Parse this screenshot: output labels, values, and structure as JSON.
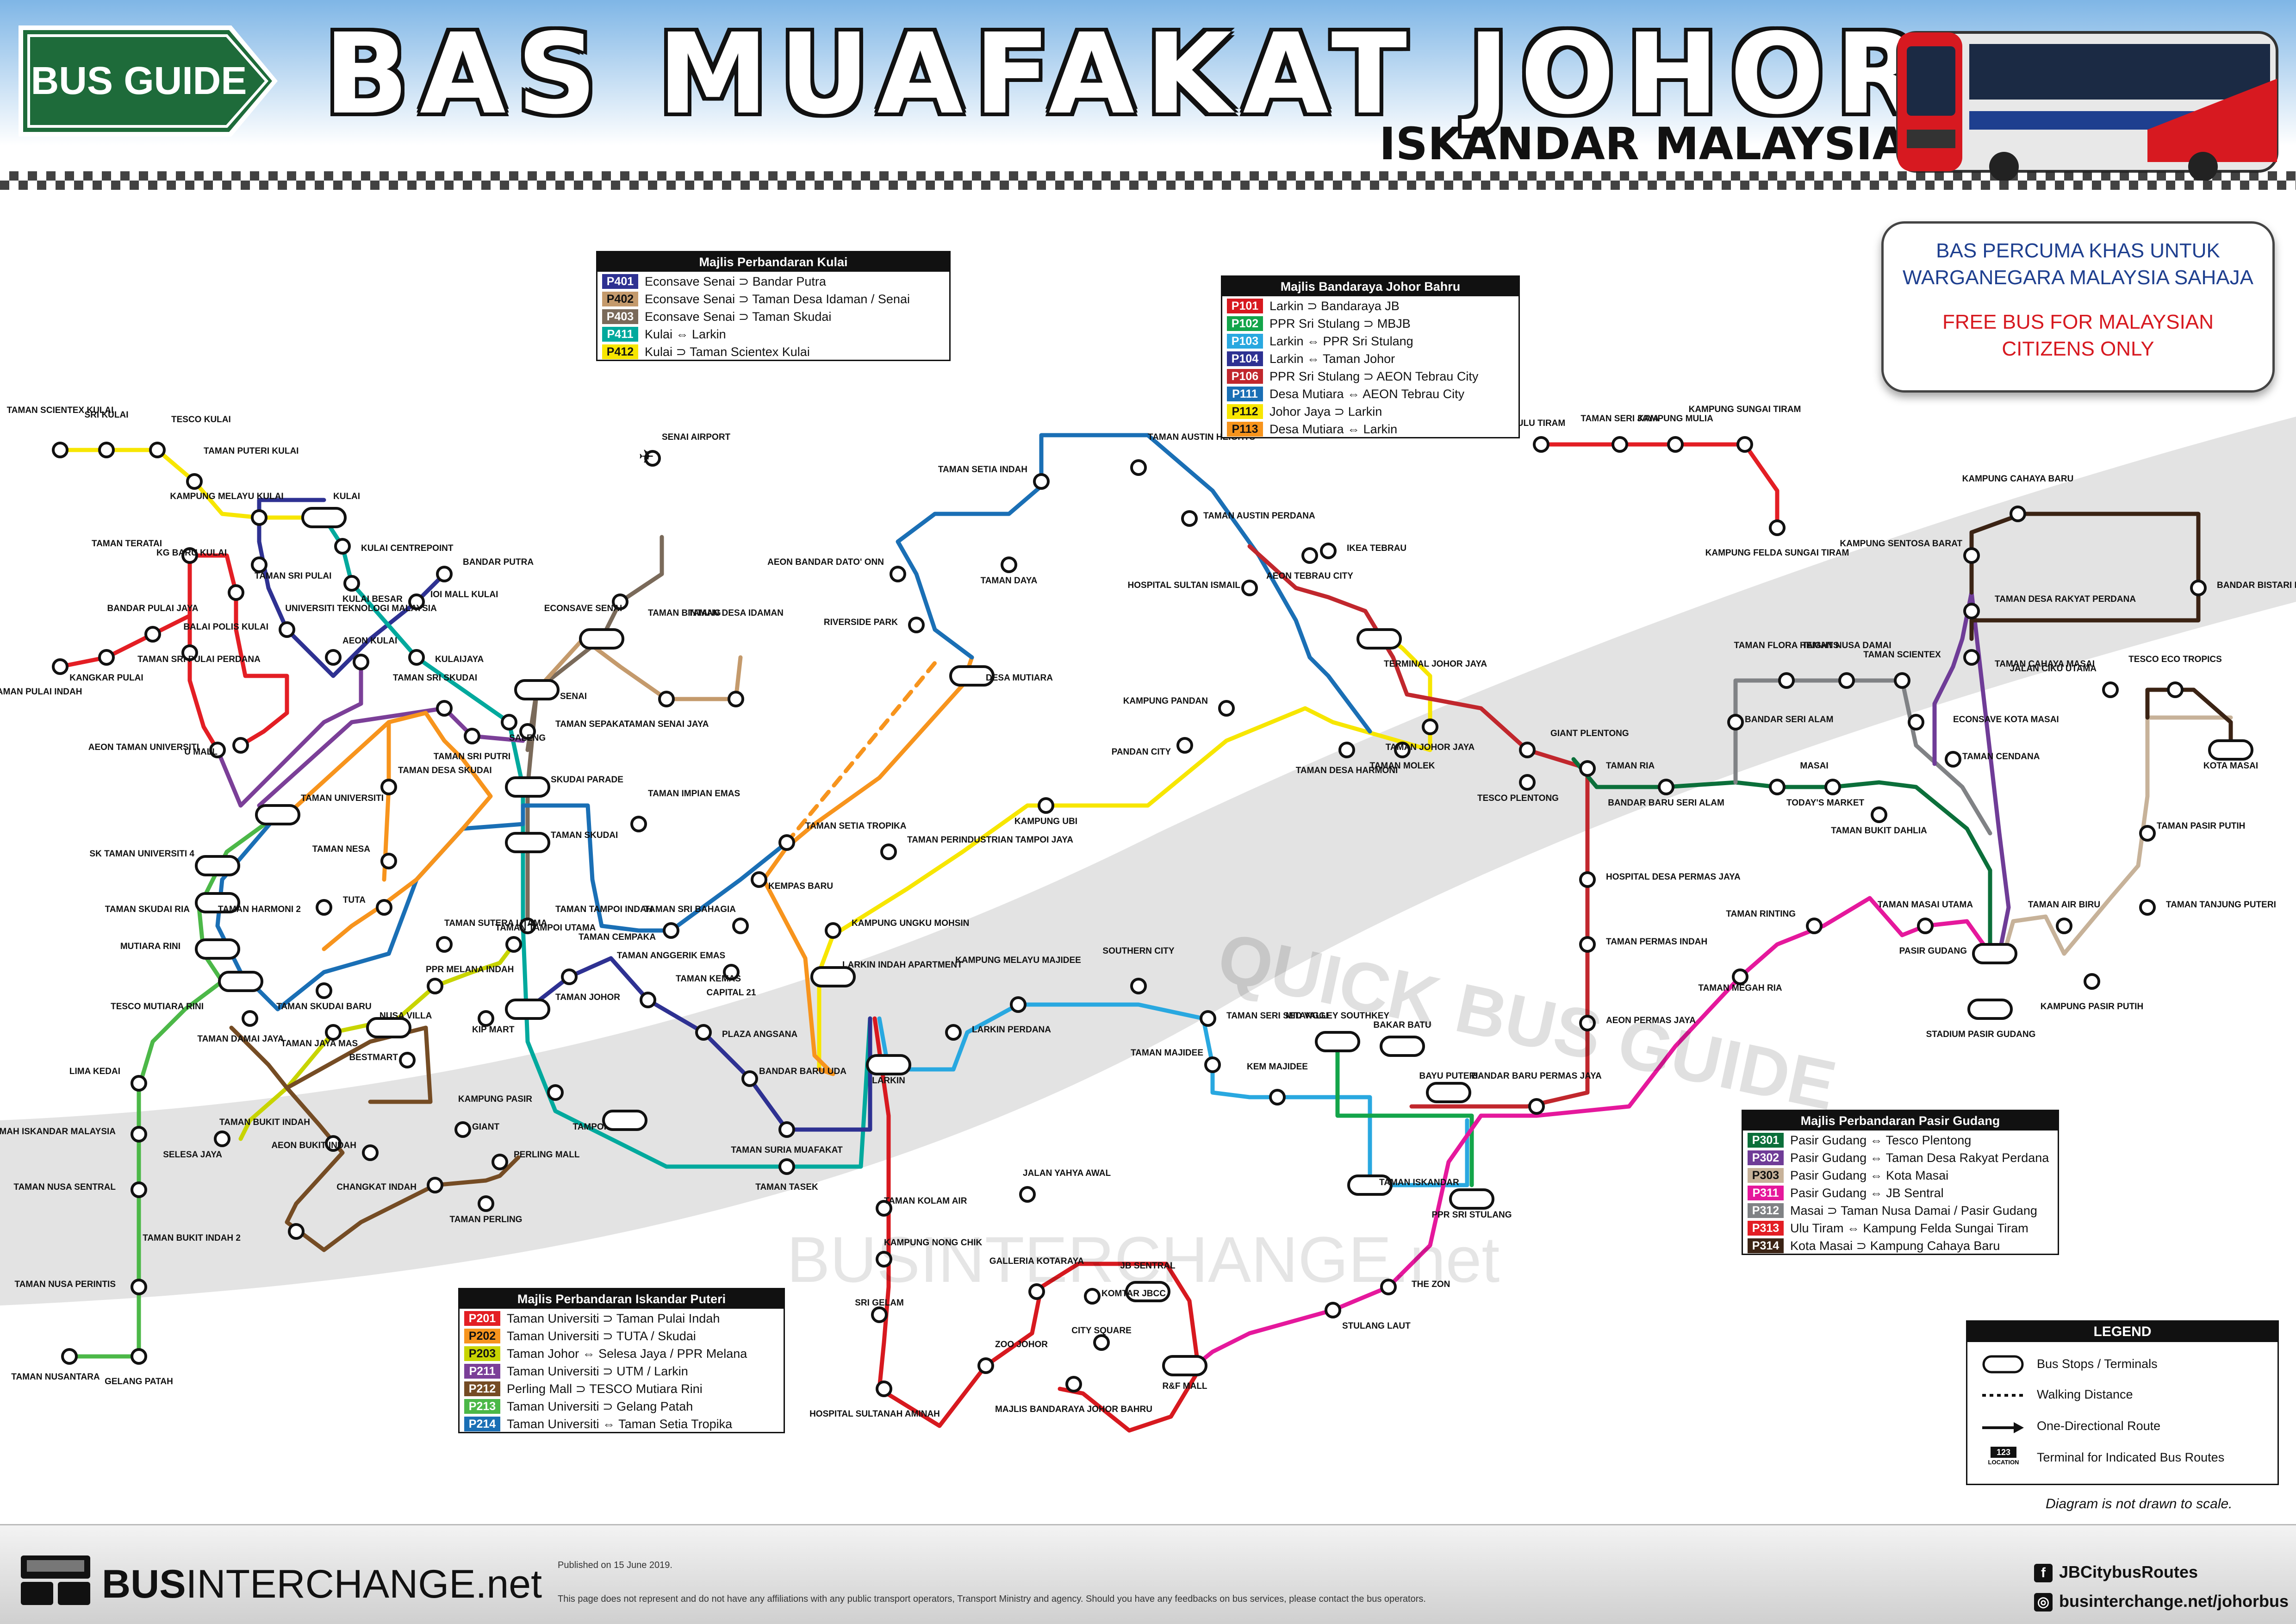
{
  "header": {
    "sign_text": "BUS GUIDE",
    "title": "BAS MUAFAKAT JOHOR",
    "subtitle": "ISKANDAR MALAYSIA"
  },
  "notice": {
    "line1a": "BAS PERCUMA KHAS UNTUK",
    "line1b": "WARGANEGARA MALAYSIA SAHAJA",
    "line2a": "FREE BUS FOR MALAYSIAN",
    "line2b": "CITIZENS ONLY"
  },
  "colors": {
    "P401": "#2e3192",
    "P402": "#c49a6c",
    "P403": "#7a6a5a",
    "P411": "#00a99d",
    "P412": "#f7e600",
    "P101": "#d7191f",
    "P102": "#13a54a",
    "P103": "#29a8e0",
    "P104": "#2e3192",
    "P106": "#c1272d",
    "P111": "#1a6fb5",
    "P112": "#f7e600",
    "P113": "#f7941d",
    "P201": "#e31e24",
    "P202": "#f7941d",
    "P203": "#c8d400",
    "P211": "#7b3f98",
    "P212": "#754c24",
    "P213": "#4cb848",
    "P214": "#1a6fb5",
    "P301": "#0b6f3a",
    "P302": "#6f3c97",
    "P303": "#c7b299",
    "P311": "#e5189c",
    "P312": "#808285",
    "P313": "#e31e24",
    "P314": "#3b2314"
  },
  "boxes": {
    "kulai": {
      "title": "Majlis Perbandaran Kulai",
      "rows": [
        {
          "code": "P401",
          "desc": "Econsave Senai ⊃ Bandar Putra"
        },
        {
          "code": "P402",
          "desc": "Econsave Senai ⊃ Taman Desa Idaman / Senai"
        },
        {
          "code": "P403",
          "desc": "Econsave Senai ⊃ Taman Skudai"
        },
        {
          "code": "P411",
          "desc": "Kulai ⇔ Larkin"
        },
        {
          "code": "P412",
          "desc": "Kulai ⊃ Taman Scientex Kulai"
        }
      ]
    },
    "jb": {
      "title": "Majlis Bandaraya Johor Bahru",
      "rows": [
        {
          "code": "P101",
          "desc": "Larkin ⊃ Bandaraya JB"
        },
        {
          "code": "P102",
          "desc": "PPR Sri Stulang ⊃ MBJB"
        },
        {
          "code": "P103",
          "desc": "Larkin ⇔ PPR Sri Stulang"
        },
        {
          "code": "P104",
          "desc": "Larkin ⇔ Taman Johor"
        },
        {
          "code": "P106",
          "desc": "PPR Sri Stulang ⊃ AEON Tebrau City"
        },
        {
          "code": "P111",
          "desc": "Desa Mutiara ⇔ AEON Tebrau City"
        },
        {
          "code": "P112",
          "desc": "Johor Jaya ⊃ Larkin"
        },
        {
          "code": "P113",
          "desc": "Desa Mutiara ⇔ Larkin"
        }
      ]
    },
    "ip": {
      "title": "Majlis Perbandaran Iskandar Puteri",
      "rows": [
        {
          "code": "P201",
          "desc": "Taman Universiti ⊃ Taman Pulai Indah"
        },
        {
          "code": "P202",
          "desc": "Taman Universiti ⊃ TUTA / Skudai"
        },
        {
          "code": "P203",
          "desc": "Taman Johor ⇔ Selesa Jaya / PPR Melana"
        },
        {
          "code": "P211",
          "desc": "Taman Universiti ⊃ UTM / Larkin"
        },
        {
          "code": "P212",
          "desc": "Perling Mall ⊃ TESCO Mutiara Rini"
        },
        {
          "code": "P213",
          "desc": "Taman Universiti ⊃ Gelang Patah"
        },
        {
          "code": "P214",
          "desc": "Taman Universiti ⇔ Taman Setia Tropika"
        }
      ]
    },
    "pg": {
      "title": "Majlis Perbandaran Pasir Gudang",
      "rows": [
        {
          "code": "P301",
          "desc": "Pasir Gudang ⇔ Tesco Plentong"
        },
        {
          "code": "P302",
          "desc": "Pasir Gudang ⇔ Taman Desa Rakyat Perdana"
        },
        {
          "code": "P303",
          "desc": "Pasir Gudang ⇔ Kota Masai"
        },
        {
          "code": "P311",
          "desc": "Pasir Gudang ⇔ JB Sentral"
        },
        {
          "code": "P312",
          "desc": "Masai ⊃ Taman Nusa Damai / Pasir Gudang"
        },
        {
          "code": "P313",
          "desc": "Ulu Tiram ⇔ Kampung Felda Sungai Tiram"
        },
        {
          "code": "P314",
          "desc": "Kota Masai ⊃ Kampung Cahaya Baru"
        }
      ]
    }
  },
  "legend": {
    "title": "LEGEND",
    "stops": "Bus Stops / Terminals",
    "walking": "Walking Distance",
    "oneway": "One-Directional Route",
    "terminal": "Terminal for Indicated Bus Routes",
    "terminal_badge": "123",
    "terminal_badge_sub": "LOCATION"
  },
  "scale_note": "Diagram is not drawn to scale.",
  "footer": {
    "brand_bold": "BUS",
    "brand_rest": "INTERCHANGE.net",
    "published": "Published on 15 June 2019.",
    "disclaimer": "This page does not represent and do not have any affiliations with any public transport operators, Transport Ministry and agency. Should you have any feedbacks on bus services, please contact the bus operators.",
    "facebook": "JBCitybusRoutes",
    "website": "businterchange.net/johorbus"
  },
  "watermark": {
    "w1": "QUICK BUS GUIDE",
    "w2": "BUSINTERCHANGE.net"
  },
  "stations": [
    {
      "n": "TAMAN SCIENTEX KULAI"
    },
    {
      "n": "SRI KULAI"
    },
    {
      "n": "TESCO KULAI"
    },
    {
      "n": "TAMAN PUTERI KULAI"
    },
    {
      "n": "KAMPUNG MELAYU KULAI"
    },
    {
      "n": "KULAI"
    },
    {
      "n": "Kulai Centrepoint"
    },
    {
      "n": "KULAI BESAR"
    },
    {
      "n": "KG BARU KULAI"
    },
    {
      "n": "BALAI POLIS KULAI"
    },
    {
      "n": "AEON KULAI"
    },
    {
      "n": "IOI MALL KULAI"
    },
    {
      "n": "BANDAR PUTRA"
    },
    {
      "n": "KULAIJAYA"
    },
    {
      "n": "SALENG"
    },
    {
      "n": "SENAI AIRPORT"
    },
    {
      "n": "ECONSAVE SENAI"
    },
    {
      "n": "TAMAN BINTANG"
    },
    {
      "n": "TAMAN DESA IDAMAN"
    },
    {
      "n": "TAMAN SENAI JAYA"
    },
    {
      "n": "SENAI"
    },
    {
      "n": "TAMAN SEPAKAT"
    },
    {
      "n": "SKUDAI PARADE"
    },
    {
      "n": "TAMAN SKUDAI"
    },
    {
      "n": "TAMAN IMPIAN EMAS"
    },
    {
      "n": "TAMAN ANGGERIK EMAS"
    },
    {
      "n": "TAMAN SETIA TROPIKA"
    },
    {
      "n": "KEMPAS BARU"
    },
    {
      "n": "TAMAN SRI BAHAGIA"
    },
    {
      "n": "CAPITAL 21"
    },
    {
      "n": "TAMAN TAMPOI INDAH"
    },
    {
      "n": "TAMAN CEMPAKA"
    },
    {
      "n": "TAMAN JOHOR"
    },
    {
      "n": "TAMAN KEMAS"
    },
    {
      "n": "PLAZA ANGSANA"
    },
    {
      "n": "BANDAR BARU UDA"
    },
    {
      "n": "TAMAN SURIA MUAFAKAT"
    },
    {
      "n": "TAMPOI"
    },
    {
      "n": "KAMPUNG PASIR"
    },
    {
      "n": "TAMAN TASEK"
    },
    {
      "n": "TAMAN TERATAI"
    },
    {
      "n": "TAMAN SRI PULAI"
    },
    {
      "n": "BANDAR PULAI JAYA"
    },
    {
      "n": "TAMAN SRI PULAI PERDANA"
    },
    {
      "n": "TAMAN PULAI INDAH"
    },
    {
      "n": "KANGKAR PULAI"
    },
    {
      "n": "U MALL"
    },
    {
      "n": "UNIVERSITI TEKNOLOGI MALAYSIA"
    },
    {
      "n": "AEON TAMAN UNIVERSITI"
    },
    {
      "n": "TAMAN UNIVERSITI"
    },
    {
      "n": "TAMAN SRI SKUDAI"
    },
    {
      "n": "TAMAN SRI PUTRI"
    },
    {
      "n": "TAMAN DESA SKUDAI"
    },
    {
      "n": "SK TAMAN UNIVERSITI 4"
    },
    {
      "n": "TAMAN NESA"
    },
    {
      "n": "TAMAN SKUDAI RIA"
    },
    {
      "n": "TAMAN HARMONI 2"
    },
    {
      "n": "TUTA"
    },
    {
      "n": "TAMAN SUTERA UTAMA"
    },
    {
      "n": "MUTIARA RINI"
    },
    {
      "n": "TESCO MUTIARA RINI"
    },
    {
      "n": "TAMAN TAMPOI UTAMA"
    },
    {
      "n": "PPR MELANA INDAH"
    },
    {
      "n": "TAMAN SKUDAI BARU"
    },
    {
      "n": "NUSA VILLA"
    },
    {
      "n": "Bestmart"
    },
    {
      "n": "KIP Mart"
    },
    {
      "n": "TAMAN DAMAI JAYA"
    },
    {
      "n": "TAMAN JAYA MAS"
    },
    {
      "n": "SELESA JAYA"
    },
    {
      "n": "TAMAN BUKIT INDAH"
    },
    {
      "n": "Giant"
    },
    {
      "n": "AEON BUKIT INDAH"
    },
    {
      "n": "PERLING MALL"
    },
    {
      "n": "CHANGKAT INDAH"
    },
    {
      "n": "TAMAN PERLING"
    },
    {
      "n": "TAMAN BUKIT INDAH 2"
    },
    {
      "n": "LIMA KEDAI"
    },
    {
      "n": "RUMAH ISKANDAR MALAYSIA"
    },
    {
      "n": "TAMAN NUSA SENTRAL"
    },
    {
      "n": "TAMAN NUSA PERINTIS"
    },
    {
      "n": "TAMAN NUSANTARA"
    },
    {
      "n": "GELANG PATAH"
    },
    {
      "n": "AEON BANDAR DATO' ONN"
    },
    {
      "n": "RIVERSIDE PARK"
    },
    {
      "n": "DESA MUTIARA"
    },
    {
      "n": "TAMAN DAYA"
    },
    {
      "n": "TAMAN SETIA INDAH"
    },
    {
      "n": "TAMAN AUSTIN HEIGHTS"
    },
    {
      "n": "TAMAN AUSTIN PERDANA"
    },
    {
      "n": "HOSPITAL SULTAN ISMAIL"
    },
    {
      "n": "AEON TEBRAU CITY"
    },
    {
      "n": "IKEA Tebrau"
    },
    {
      "n": "TERMINAL JOHOR JAYA"
    },
    {
      "n": "TAMAN JOHOR JAYA"
    },
    {
      "n": "TAMAN MOLEK"
    },
    {
      "n": "TAMAN DESA HARMONI"
    },
    {
      "n": "KAMPUNG PANDAN"
    },
    {
      "n": "PANDAN CITY"
    },
    {
      "n": "KAMPUNG UBI"
    },
    {
      "n": "TAMAN PERINDUSTRIAN TAMPOI JAYA"
    },
    {
      "n": "KAMPUNG UNGKU MOHSIN"
    },
    {
      "n": "LARKIN INDAH APARTMENT"
    },
    {
      "n": "LARKIN"
    },
    {
      "n": "LARKIN PERDANA"
    },
    {
      "n": "KAMPUNG MELAYU MAJIDEE"
    },
    {
      "n": "SOUTHERN CITY"
    },
    {
      "n": "TAMAN SERI SETANGGI"
    },
    {
      "n": "TAMAN MAJIDEE"
    },
    {
      "n": "KEM MAJIDEE"
    },
    {
      "n": "MID VALLEY SOUTHKEY"
    },
    {
      "n": "BAKAR BATU"
    },
    {
      "n": "BAYU PUTERI"
    },
    {
      "n": "TAMAN ISKANDAR"
    },
    {
      "n": "PPR SRI STULANG"
    },
    {
      "n": "STULANG LAUT"
    },
    {
      "n": "The Zon"
    },
    {
      "n": "JB SENTRAL"
    },
    {
      "n": "R&F MALL"
    },
    {
      "n": "MAJLIS BANDARAYA JOHOR BAHRU"
    },
    {
      "n": "ZOO JOHOR"
    },
    {
      "n": "HOSPITAL SULTANAH AMINAH"
    },
    {
      "n": "SRI GELAM"
    },
    {
      "n": "KAMPUNG NONG CHIK"
    },
    {
      "n": "TAMAN KOLAM AIR"
    },
    {
      "n": "JALAN YAHYA AWAL"
    },
    {
      "n": "GALLERIA KOTARAYA"
    },
    {
      "n": "Komtar JBCC"
    },
    {
      "n": "City Square"
    },
    {
      "n": "GIANT PLENTONG"
    },
    {
      "n": "TAMAN RIA"
    },
    {
      "n": "TESCO PLENTONG"
    },
    {
      "n": "HOSPITAL DESA PERMAS JAYA"
    },
    {
      "n": "TAMAN PERMAS INDAH"
    },
    {
      "n": "AEON PERMAS JAYA"
    },
    {
      "n": "BANDAR BARU PERMAS JAYA"
    },
    {
      "n": "BANDAR BARU SERI ALAM"
    },
    {
      "n": "TODAY'S MARKET"
    },
    {
      "n": "MASAI"
    },
    {
      "n": "BANDAR SERI ALAM"
    },
    {
      "n": "TAMAN FLORA HEIGHTS"
    },
    {
      "n": "TAMAN NUSA DAMAI"
    },
    {
      "n": "TAMAN SCIENTEX"
    },
    {
      "n": "Econsave Kota Masai"
    },
    {
      "n": "TAMAN CENDANA"
    },
    {
      "n": "TAMAN BUKIT DAHLIA"
    },
    {
      "n": "TAMAN RINTING"
    },
    {
      "n": "TAMAN MASAI UTAMA"
    },
    {
      "n": "TAMAN MEGAH RIA"
    },
    {
      "n": "STADIUM PASIR GUDANG"
    },
    {
      "n": "PASIR GUDANG"
    },
    {
      "n": "TAMAN AIR BIRU"
    },
    {
      "n": "KAMPUNG PASIR PUTIH"
    },
    {
      "n": "TAMAN PASIR PUTIH"
    },
    {
      "n": "TAMAN TANJUNG PUTERI"
    },
    {
      "n": "JALAN CIKU UTAMA"
    },
    {
      "n": "TESCO ECO TROPICS"
    },
    {
      "n": "KOTA MASAI"
    },
    {
      "n": "KAMPUNG CAHAYA BARU"
    },
    {
      "n": "KAMPUNG SENTOSA BARAT"
    },
    {
      "n": "BANDAR BISTARI PERDANA"
    },
    {
      "n": "TAMAN DESA RAKYAT PERDANA"
    },
    {
      "n": "TAMAN CAHAYA MASAI"
    },
    {
      "n": "ULU TIRAM"
    },
    {
      "n": "TAMAN SERI JAYA"
    },
    {
      "n": "KAMPUNG MULIA"
    },
    {
      "n": "KAMPUNG SUNGAI TIRAM"
    },
    {
      "n": "KAMPUNG FELDA SUNGAI TIRAM"
    }
  ]
}
